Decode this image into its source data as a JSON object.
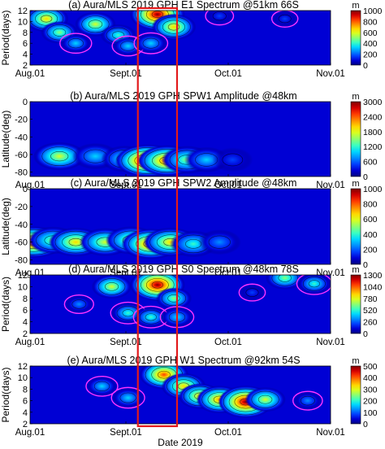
{
  "figure": {
    "xlabel": "Date 2019",
    "date_ticks": [
      "Aug.01",
      "Sept.01",
      "Oct.01",
      "Nov.01"
    ],
    "highlight": {
      "x_start": 33,
      "x_end": 45,
      "color": "#e31a1c"
    }
  },
  "colors": {
    "colormap": [
      "#00007f",
      "#0000d4",
      "#0040ff",
      "#0090ff",
      "#00d8ff",
      "#3cffc0",
      "#8cff70",
      "#d8ff20",
      "#ffd800",
      "#ff8c00",
      "#ff3c00",
      "#d40000",
      "#7f0000"
    ],
    "contour_line": "#000000",
    "negative_contour": "#ff33ff",
    "highlight": "#e31a1c"
  },
  "chart_data": [
    {
      "id": "a",
      "type": "heatmap",
      "title": "(a) Aura/MLS 2019 GPH E1 Spectrum @51km 66S",
      "ylabel": "Period(days)",
      "x": "days since Aug.01",
      "xlim": [
        0,
        92
      ],
      "yticks": [
        "2",
        "4",
        "6",
        "8",
        "10",
        "12"
      ],
      "ylim": [
        2,
        12
      ],
      "colorbar": {
        "unit": "m",
        "ticks": [
          "0",
          "200",
          "400",
          "600",
          "800",
          "1000"
        ],
        "range": [
          0,
          1000
        ]
      },
      "features": [
        {
          "x": 5,
          "y": 10.5,
          "value": 700
        },
        {
          "x": 9,
          "y": 8,
          "value": 500
        },
        {
          "x": 14,
          "y": 6,
          "value": 300
        },
        {
          "x": 20,
          "y": 9.5,
          "value": 600
        },
        {
          "x": 27,
          "y": 7.5,
          "value": 450
        },
        {
          "x": 30,
          "y": 5.5,
          "value": 300
        },
        {
          "x": 39,
          "y": 11.3,
          "value": 1000
        },
        {
          "x": 44,
          "y": 9,
          "value": 700
        },
        {
          "x": 37,
          "y": 6,
          "value": 350
        },
        {
          "x": 58,
          "y": 11,
          "value": 200
        },
        {
          "x": 78,
          "y": 10.5,
          "value": 150
        }
      ]
    },
    {
      "id": "b",
      "type": "heatmap",
      "title": "(b) Aura/MLS 2019 GPH  SPW1 Amplitude @48km",
      "ylabel": "Latitude(deg)",
      "xlim": [
        0,
        92
      ],
      "yticks": [
        "-80",
        "-60",
        "-40",
        "-20",
        "0"
      ],
      "ylim": [
        -85,
        0
      ],
      "colorbar": {
        "unit": "m",
        "ticks": [
          "0",
          "600",
          "1200",
          "1800",
          "2400",
          "3000"
        ],
        "range": [
          0,
          3000
        ]
      },
      "features": [
        {
          "x": 9,
          "y": -62,
          "value": 1700
        },
        {
          "x": 20,
          "y": -62,
          "value": 1100
        },
        {
          "x": 29,
          "y": -65,
          "value": 1200
        },
        {
          "x": 36,
          "y": -67,
          "value": 3000
        },
        {
          "x": 42,
          "y": -67,
          "value": 2500
        },
        {
          "x": 48,
          "y": -66,
          "value": 1600
        },
        {
          "x": 54,
          "y": -66,
          "value": 900
        },
        {
          "x": 62,
          "y": -66,
          "value": 500
        }
      ]
    },
    {
      "id": "c",
      "type": "heatmap",
      "title": "(c) Aura/MLS 2019 GPH SPW2 Amplitude @48km",
      "ylabel": "Latitude(deg)",
      "xlim": [
        0,
        92
      ],
      "yticks": [
        "-80",
        "-60",
        "-40",
        "-20",
        "0"
      ],
      "ylim": [
        -85,
        0
      ],
      "colorbar": {
        "unit": "m",
        "ticks": [
          "0",
          "200",
          "400",
          "600",
          "800",
          "1000"
        ],
        "range": [
          0,
          1000
        ]
      },
      "features": [
        {
          "x": 1,
          "y": -60,
          "value": 900
        },
        {
          "x": 7,
          "y": -58,
          "value": 500
        },
        {
          "x": 14,
          "y": -60,
          "value": 650
        },
        {
          "x": 23,
          "y": -60,
          "value": 550
        },
        {
          "x": 31,
          "y": -58,
          "value": 550
        },
        {
          "x": 37,
          "y": -62,
          "value": 800
        },
        {
          "x": 43,
          "y": -60,
          "value": 650
        },
        {
          "x": 50,
          "y": -62,
          "value": 400
        },
        {
          "x": 58,
          "y": -60,
          "value": 250
        }
      ]
    },
    {
      "id": "d",
      "type": "heatmap",
      "title": "(d) Aura/MLS 2019 GPH S0 Spectrum @48km 78S",
      "ylabel": "Period(days)",
      "xlim": [
        0,
        92
      ],
      "yticks": [
        "2",
        "4",
        "6",
        "8",
        "10",
        "12"
      ],
      "ylim": [
        2,
        12
      ],
      "colorbar": {
        "unit": "m",
        "ticks": [
          "0",
          "260",
          "520",
          "780",
          "1040",
          "1300"
        ],
        "range": [
          0,
          1300
        ]
      },
      "features": [
        {
          "x": 25,
          "y": 10,
          "value": 750
        },
        {
          "x": 39,
          "y": 10.3,
          "value": 1300
        },
        {
          "x": 44,
          "y": 8,
          "value": 600
        },
        {
          "x": 15,
          "y": 7,
          "value": 300
        },
        {
          "x": 30,
          "y": 5.5,
          "value": 500
        },
        {
          "x": 37,
          "y": 4.8,
          "value": 500
        },
        {
          "x": 45,
          "y": 4.8,
          "value": 450
        },
        {
          "x": 78,
          "y": 11.5,
          "value": 700
        },
        {
          "x": 87,
          "y": 10.5,
          "value": 500
        },
        {
          "x": 68,
          "y": 9,
          "value": 200
        }
      ]
    },
    {
      "id": "e",
      "type": "heatmap",
      "title": "(e) Aura/MLS 2019 GPH W1 Spectrum @92km 54S",
      "ylabel": "Period(days)",
      "xlim": [
        0,
        92
      ],
      "yticks": [
        "2",
        "4",
        "6",
        "8",
        "10",
        "12"
      ],
      "ylim": [
        2,
        12
      ],
      "colorbar": {
        "unit": "m",
        "ticks": [
          "0",
          "100",
          "200",
          "300",
          "400",
          "500"
        ],
        "range": [
          0,
          500
        ]
      },
      "features": [
        {
          "x": 41,
          "y": 10.5,
          "value": 420
        },
        {
          "x": 47,
          "y": 8.5,
          "value": 350
        },
        {
          "x": 52,
          "y": 6.8,
          "value": 330
        },
        {
          "x": 58,
          "y": 6.2,
          "value": 380
        },
        {
          "x": 66,
          "y": 5.8,
          "value": 500
        },
        {
          "x": 72,
          "y": 6.2,
          "value": 300
        },
        {
          "x": 22,
          "y": 8.5,
          "value": 150
        },
        {
          "x": 30,
          "y": 6.5,
          "value": 170
        },
        {
          "x": 85,
          "y": 6,
          "value": 120
        }
      ]
    }
  ]
}
